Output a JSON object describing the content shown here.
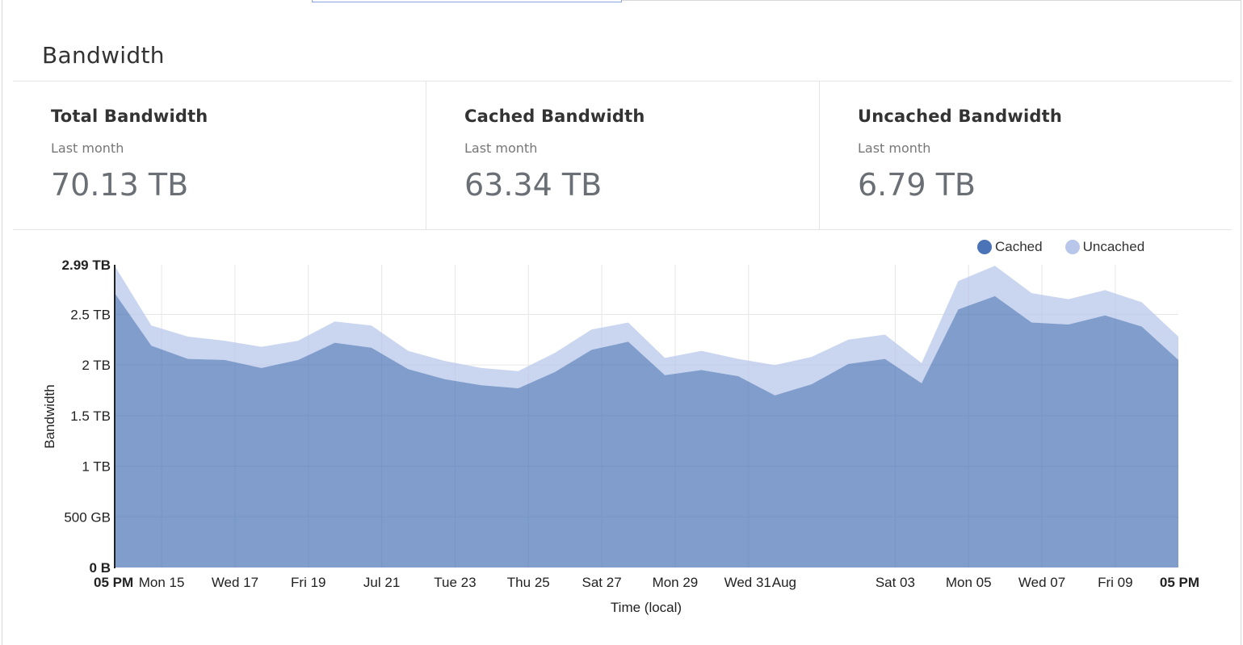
{
  "header": {
    "title": "Bandwidth"
  },
  "stats": [
    {
      "label": "Total Bandwidth",
      "period": "Last month",
      "value": "70.13 TB"
    },
    {
      "label": "Cached Bandwidth",
      "period": "Last month",
      "value": "63.34 TB"
    },
    {
      "label": "Uncached Bandwidth",
      "period": "Last month",
      "value": "6.79 TB"
    }
  ],
  "colors": {
    "cached": "#4a74b6",
    "uncached": "#b8c7e9"
  },
  "chart_data": {
    "type": "area",
    "stacked": true,
    "xlabel": "Time (local)",
    "ylabel": "Bandwidth",
    "ylim": [
      0,
      2.99
    ],
    "y_unit": "TB",
    "y_ticks": [
      {
        "value": 0,
        "label": "0 B",
        "bold": true
      },
      {
        "value": 0.5,
        "label": "500 GB"
      },
      {
        "value": 1,
        "label": "1 TB"
      },
      {
        "value": 1.5,
        "label": "1.5 TB"
      },
      {
        "value": 2,
        "label": "2 TB"
      },
      {
        "value": 2.5,
        "label": "2.5 TB"
      },
      {
        "value": 2.99,
        "label": "2.99 TB",
        "bold": true
      }
    ],
    "x_ticks": [
      {
        "day": 0,
        "label": "05 PM",
        "bold": true
      },
      {
        "day": 0.64,
        "label": "Mon 15"
      },
      {
        "day": 1.64,
        "label": "Wed 17"
      },
      {
        "day": 2.64,
        "label": "Fri 19"
      },
      {
        "day": 3.64,
        "label": "Jul 21"
      },
      {
        "day": 4.64,
        "label": "Tue 23"
      },
      {
        "day": 5.64,
        "label": "Thu 25"
      },
      {
        "day": 6.64,
        "label": "Sat 27"
      },
      {
        "day": 7.64,
        "label": "Mon 29"
      },
      {
        "day": 8.64,
        "label": "Wed 31"
      },
      {
        "day": 9.1,
        "label": "Aug"
      },
      {
        "day": 10.64,
        "label": "Sat 03"
      },
      {
        "day": 11.64,
        "label": "Mon 05"
      },
      {
        "day": 12.64,
        "label": "Wed 07"
      },
      {
        "day": 13.64,
        "label": "Fri 09"
      },
      {
        "day": 14.5,
        "label": "05 PM",
        "bold": true
      }
    ],
    "x_range": [
      0,
      14.5
    ],
    "legend": "top-right",
    "series": [
      {
        "name": "Cached",
        "x": [
          0,
          0.5,
          1.0,
          1.5,
          2.0,
          2.5,
          3.0,
          3.5,
          4.0,
          4.5,
          5.0,
          5.5,
          6.0,
          6.5,
          7.0,
          7.5,
          8.0,
          8.5,
          9.0,
          9.5,
          10.0,
          10.5,
          11.0,
          11.5,
          12.0,
          12.5,
          13.0,
          13.5,
          14.0,
          14.5
        ],
        "values": [
          2.71,
          2.19,
          2.06,
          2.05,
          1.97,
          2.05,
          2.22,
          2.17,
          1.96,
          1.86,
          1.8,
          1.77,
          1.93,
          2.15,
          2.23,
          1.9,
          1.95,
          1.89,
          1.7,
          1.81,
          2.01,
          2.06,
          1.82,
          2.55,
          2.68,
          2.42,
          2.4,
          2.49,
          2.38,
          2.05
        ]
      },
      {
        "name": "Uncached",
        "x": [
          0,
          0.5,
          1.0,
          1.5,
          2.0,
          2.5,
          3.0,
          3.5,
          4.0,
          4.5,
          5.0,
          5.5,
          6.0,
          6.5,
          7.0,
          7.5,
          8.0,
          8.5,
          9.0,
          9.5,
          10.0,
          10.5,
          11.0,
          11.5,
          12.0,
          12.5,
          13.0,
          13.5,
          14.0,
          14.5
        ],
        "values": [
          0.27,
          0.2,
          0.22,
          0.19,
          0.21,
          0.19,
          0.21,
          0.22,
          0.18,
          0.18,
          0.17,
          0.17,
          0.19,
          0.2,
          0.19,
          0.17,
          0.19,
          0.17,
          0.3,
          0.27,
          0.24,
          0.24,
          0.2,
          0.28,
          0.3,
          0.29,
          0.25,
          0.25,
          0.24,
          0.23
        ]
      }
    ]
  }
}
